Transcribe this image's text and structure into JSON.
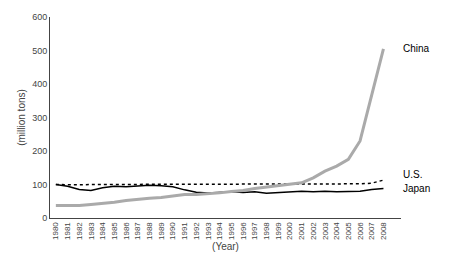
{
  "chart_data": {
    "type": "line",
    "x": [
      1980,
      1981,
      1982,
      1983,
      1984,
      1985,
      1986,
      1987,
      1988,
      1989,
      1990,
      1991,
      1992,
      1993,
      1994,
      1995,
      1996,
      1997,
      1998,
      1999,
      2000,
      2001,
      2002,
      2003,
      2004,
      2005,
      2006,
      2007,
      2008
    ],
    "series": [
      {
        "name": "U.S.",
        "color": "#000000",
        "line_style": "dotted",
        "values": [
          100,
          99,
          99,
          100,
          100,
          100,
          100,
          101,
          101,
          100,
          100,
          100,
          100,
          100,
          100,
          101,
          101,
          101,
          100,
          100,
          101,
          100,
          100,
          100,
          101,
          101,
          102,
          104,
          113
        ]
      },
      {
        "name": "Japan",
        "color": "#000000",
        "line_style": "solid",
        "values": [
          100,
          95,
          85,
          82,
          90,
          95,
          93,
          96,
          98,
          96,
          93,
          84,
          77,
          75,
          77,
          78,
          76,
          78,
          74,
          76,
          78,
          80,
          78,
          80,
          78,
          80,
          80,
          85,
          88
        ]
      },
      {
        "name": "China",
        "color": "#aaaaaa",
        "line_style": "solid",
        "values": [
          37,
          36,
          37,
          40,
          43,
          47,
          52,
          56,
          59,
          61,
          66,
          70,
          70,
          72,
          75,
          79,
          82,
          88,
          92,
          95,
          99,
          105,
          120,
          140,
          155,
          175,
          230,
          370,
          505
        ]
      }
    ],
    "x_label": "(Year)",
    "y_label": "(million tons)",
    "xlim": [
      1979.5,
      2009.5
    ],
    "xticks": [
      1980,
      1981,
      1982,
      1983,
      1984,
      1985,
      1986,
      1987,
      1988,
      1989,
      1990,
      1991,
      1992,
      1993,
      1994,
      1995,
      1996,
      1997,
      1998,
      1999,
      2000,
      2001,
      2002,
      2003,
      2004,
      2005,
      2006,
      2007,
      2008
    ],
    "ylim": [
      0,
      600
    ],
    "yticks": [
      0,
      100,
      200,
      300,
      400,
      500,
      600
    ],
    "grid": false
  }
}
